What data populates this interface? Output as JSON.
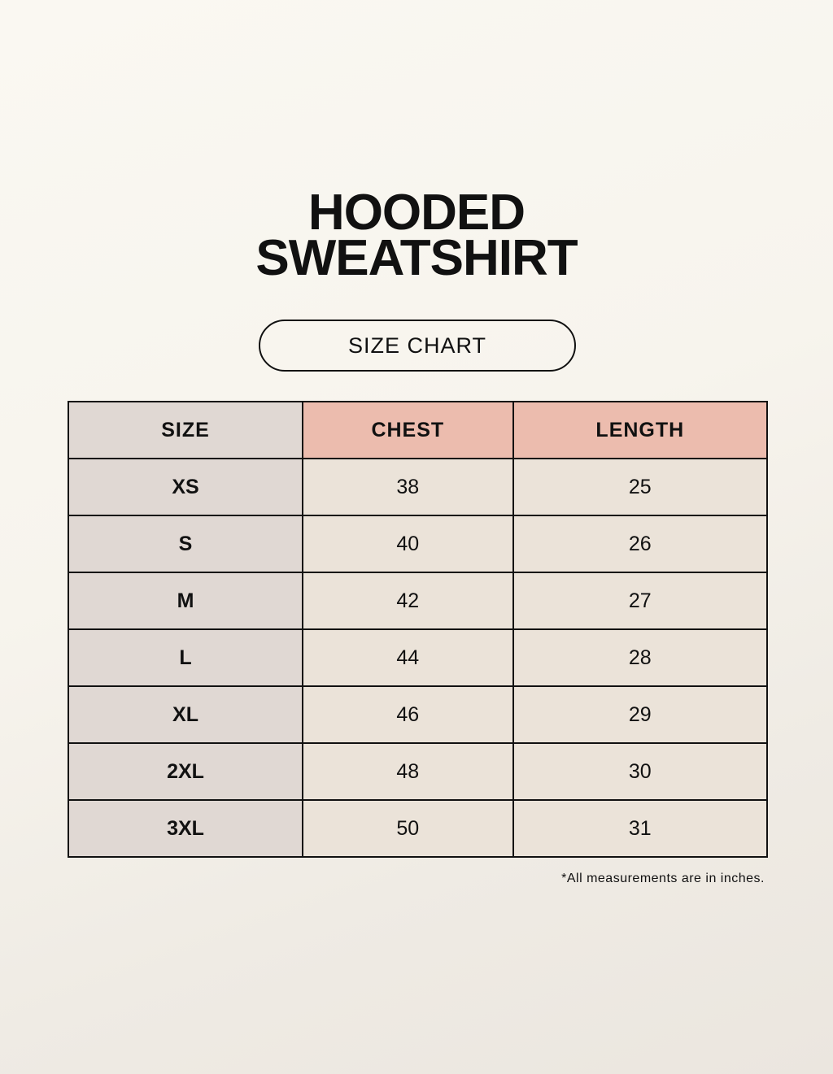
{
  "title": {
    "line1": "HOODED",
    "line2": "SWEATSHIRT"
  },
  "subtitle": "SIZE CHART",
  "table": {
    "headers": [
      "SIZE",
      "CHEST",
      "LENGTH"
    ],
    "rows": [
      [
        "XS",
        "38",
        "25"
      ],
      [
        "S",
        "40",
        "26"
      ],
      [
        "M",
        "42",
        "27"
      ],
      [
        "L",
        "44",
        "28"
      ],
      [
        "XL",
        "46",
        "29"
      ],
      [
        "2XL",
        "48",
        "30"
      ],
      [
        "3XL",
        "50",
        "31"
      ]
    ]
  },
  "footnote": "*All measurements are in inches.",
  "colors": {
    "header_accent": "#ecbcae",
    "size_column": "#e0d8d3",
    "cells": "#ebe3d9"
  }
}
